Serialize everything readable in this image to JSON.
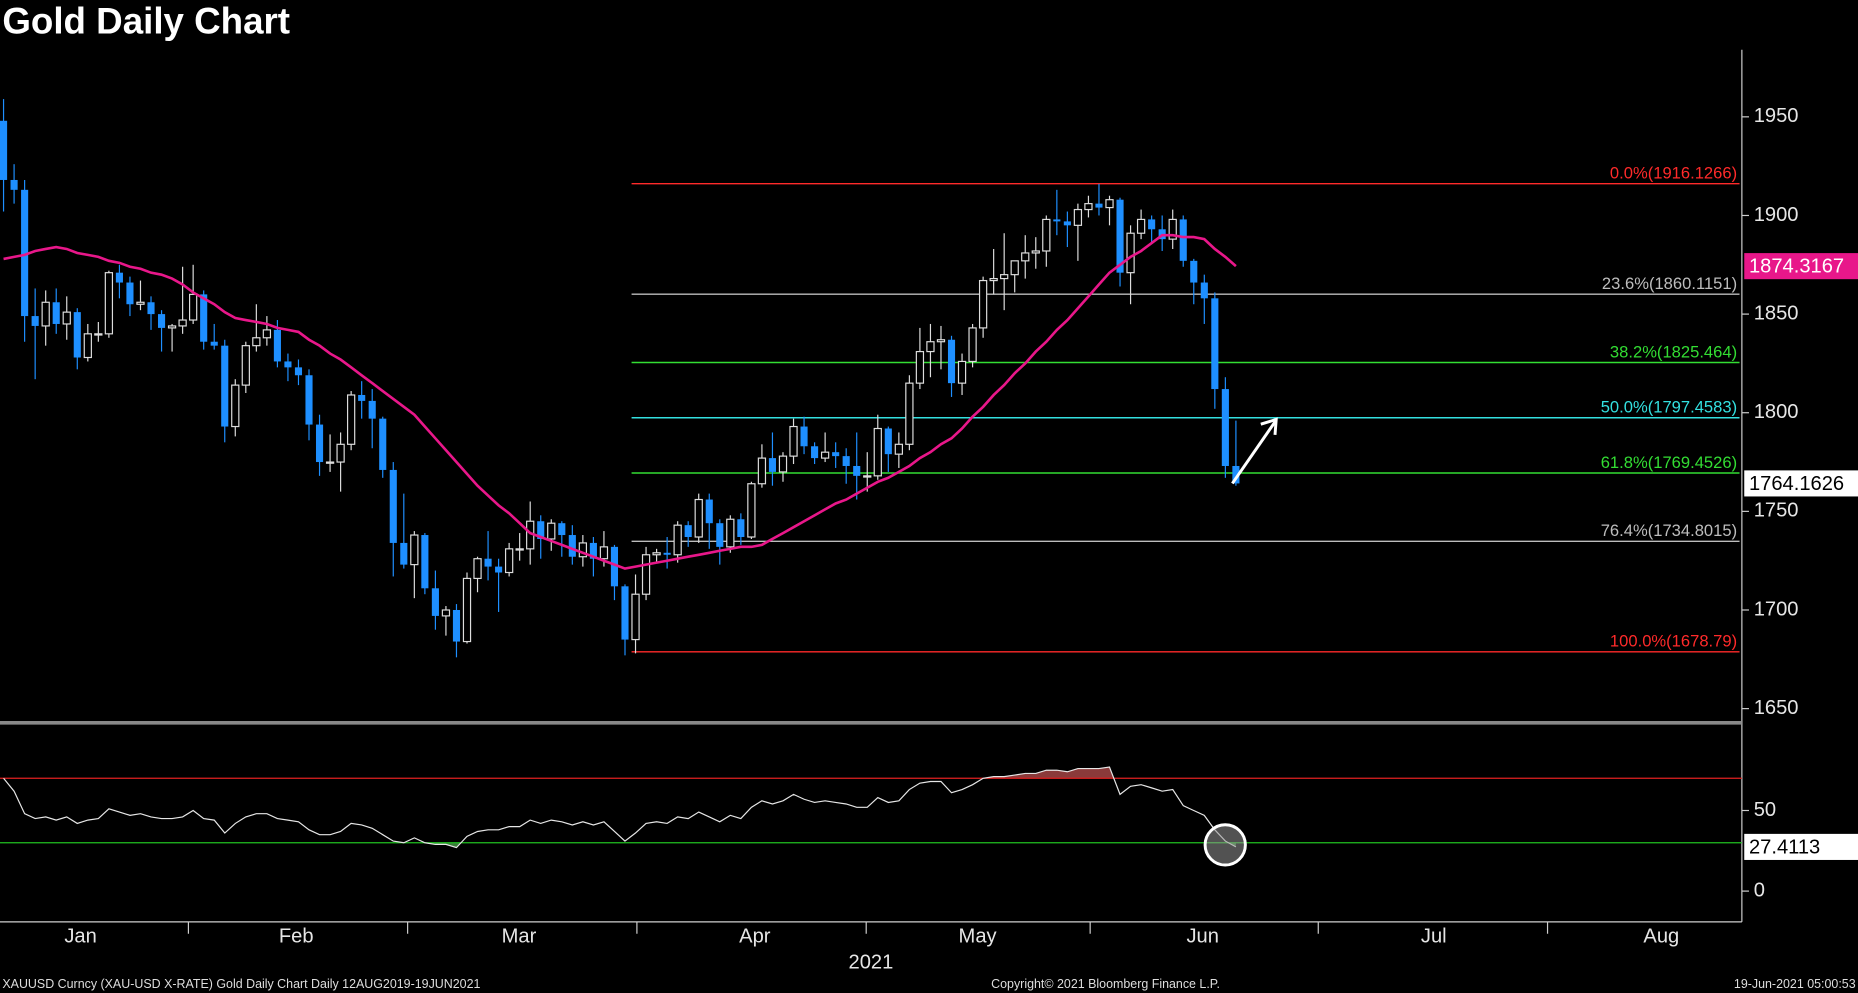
{
  "chart_data": {
    "type": "candlestick",
    "title": "Gold Daily Chart",
    "up_color": "#dddddd",
    "down_color": "#1e8fff",
    "ylim": [
      1644,
      1984
    ],
    "yticks": [
      1650,
      1700,
      1750,
      1800,
      1850,
      1900,
      1950
    ],
    "ohlc": [
      [
        1948,
        1959,
        1902,
        1918
      ],
      [
        1918,
        1926,
        1906,
        1913
      ],
      [
        1913,
        1918,
        1836,
        1849
      ],
      [
        1849,
        1863,
        1817,
        1844
      ],
      [
        1844,
        1862,
        1834,
        1856
      ],
      [
        1856,
        1863,
        1840,
        1845
      ],
      [
        1845,
        1859,
        1837,
        1851
      ],
      [
        1851,
        1853,
        1822,
        1828
      ],
      [
        1828,
        1845,
        1826,
        1840
      ],
      [
        1840,
        1846,
        1836,
        1840
      ],
      [
        1840,
        1872,
        1838,
        1871
      ],
      [
        1871,
        1875,
        1858,
        1866
      ],
      [
        1866,
        1869,
        1849,
        1855
      ],
      [
        1855,
        1867,
        1852,
        1856
      ],
      [
        1856,
        1859,
        1842,
        1850
      ],
      [
        1850,
        1852,
        1831,
        1843
      ],
      [
        1843,
        1845,
        1831,
        1844
      ],
      [
        1844,
        1874,
        1840,
        1847
      ],
      [
        1847,
        1875,
        1845,
        1860
      ],
      [
        1860,
        1862,
        1832,
        1836
      ],
      [
        1836,
        1845,
        1832,
        1834
      ],
      [
        1834,
        1837,
        1785,
        1793
      ],
      [
        1793,
        1817,
        1788,
        1814
      ],
      [
        1814,
        1836,
        1810,
        1834
      ],
      [
        1834,
        1855,
        1831,
        1838
      ],
      [
        1838,
        1849,
        1834,
        1842
      ],
      [
        1842,
        1847,
        1823,
        1826
      ],
      [
        1826,
        1830,
        1816,
        1823
      ],
      [
        1823,
        1827,
        1814,
        1819
      ],
      [
        1819,
        1822,
        1786,
        1794
      ],
      [
        1794,
        1799,
        1768,
        1775
      ],
      [
        1775,
        1789,
        1770,
        1775
      ],
      [
        1775,
        1790,
        1760,
        1784
      ],
      [
        1784,
        1811,
        1781,
        1809
      ],
      [
        1809,
        1816,
        1797,
        1806
      ],
      [
        1806,
        1812,
        1782,
        1797
      ],
      [
        1797,
        1798,
        1767,
        1771
      ],
      [
        1771,
        1775,
        1717,
        1734
      ],
      [
        1734,
        1759,
        1721,
        1723
      ],
      [
        1723,
        1740,
        1706,
        1738
      ],
      [
        1738,
        1739,
        1708,
        1711
      ],
      [
        1711,
        1720,
        1690,
        1697
      ],
      [
        1697,
        1702,
        1687,
        1700
      ],
      [
        1700,
        1703,
        1676,
        1684
      ],
      [
        1684,
        1719,
        1683,
        1716
      ],
      [
        1716,
        1727,
        1709,
        1726
      ],
      [
        1726,
        1740,
        1715,
        1722
      ],
      [
        1722,
        1726,
        1699,
        1719
      ],
      [
        1719,
        1734,
        1717,
        1731
      ],
      [
        1731,
        1739,
        1725,
        1731
      ],
      [
        1731,
        1755,
        1723,
        1745
      ],
      [
        1745,
        1748,
        1726,
        1736
      ],
      [
        1736,
        1746,
        1730,
        1744
      ],
      [
        1744,
        1745,
        1727,
        1738
      ],
      [
        1738,
        1743,
        1723,
        1727
      ],
      [
        1727,
        1738,
        1722,
        1734
      ],
      [
        1734,
        1737,
        1717,
        1726
      ],
      [
        1726,
        1740,
        1722,
        1732
      ],
      [
        1732,
        1733,
        1705,
        1712
      ],
      [
        1712,
        1713,
        1677,
        1685
      ],
      [
        1685,
        1718,
        1678,
        1708
      ],
      [
        1708,
        1732,
        1705,
        1728
      ],
      [
        1728,
        1731,
        1724,
        1729
      ],
      [
        1729,
        1737,
        1721,
        1728
      ],
      [
        1728,
        1745,
        1724,
        1743
      ],
      [
        1743,
        1745,
        1732,
        1737
      ],
      [
        1737,
        1759,
        1734,
        1756
      ],
      [
        1756,
        1759,
        1731,
        1744
      ],
      [
        1744,
        1746,
        1723,
        1732
      ],
      [
        1732,
        1748,
        1729,
        1746
      ],
      [
        1746,
        1749,
        1733,
        1737
      ],
      [
        1737,
        1765,
        1736,
        1764
      ],
      [
        1764,
        1784,
        1762,
        1777
      ],
      [
        1777,
        1790,
        1763,
        1770
      ],
      [
        1770,
        1780,
        1765,
        1778
      ],
      [
        1778,
        1797,
        1774,
        1793
      ],
      [
        1793,
        1798,
        1779,
        1783
      ],
      [
        1783,
        1785,
        1774,
        1777
      ],
      [
        1777,
        1790,
        1775,
        1780
      ],
      [
        1780,
        1785,
        1772,
        1778
      ],
      [
        1778,
        1782,
        1764,
        1773
      ],
      [
        1773,
        1790,
        1756,
        1768
      ],
      [
        1768,
        1780,
        1760,
        1768
      ],
      [
        1768,
        1799,
        1766,
        1792
      ],
      [
        1792,
        1793,
        1770,
        1779
      ],
      [
        1779,
        1790,
        1772,
        1784
      ],
      [
        1784,
        1819,
        1781,
        1815
      ],
      [
        1815,
        1843,
        1812,
        1831
      ],
      [
        1831,
        1845,
        1818,
        1836
      ],
      [
        1836,
        1844,
        1822,
        1837
      ],
      [
        1837,
        1839,
        1808,
        1815
      ],
      [
        1815,
        1830,
        1809,
        1826
      ],
      [
        1826,
        1845,
        1823,
        1843
      ],
      [
        1843,
        1869,
        1838,
        1867
      ],
      [
        1867,
        1883,
        1860,
        1868
      ],
      [
        1868,
        1891,
        1852,
        1870
      ],
      [
        1870,
        1877,
        1861,
        1877
      ],
      [
        1877,
        1890,
        1868,
        1881
      ],
      [
        1881,
        1889,
        1873,
        1882
      ],
      [
        1882,
        1900,
        1874,
        1898
      ],
      [
        1898,
        1913,
        1890,
        1897
      ],
      [
        1897,
        1902,
        1884,
        1895
      ],
      [
        1895,
        1906,
        1877,
        1903
      ],
      [
        1903,
        1910,
        1899,
        1906
      ],
      [
        1906,
        1916,
        1900,
        1904
      ],
      [
        1904,
        1910,
        1895,
        1908
      ],
      [
        1908,
        1909,
        1864,
        1871
      ],
      [
        1871,
        1895,
        1855,
        1891
      ],
      [
        1891,
        1903,
        1888,
        1898
      ],
      [
        1898,
        1900,
        1886,
        1893
      ],
      [
        1893,
        1900,
        1882,
        1888
      ],
      [
        1888,
        1903,
        1883,
        1898
      ],
      [
        1898,
        1900,
        1874,
        1877
      ],
      [
        1877,
        1878,
        1855,
        1866
      ],
      [
        1866,
        1870,
        1845,
        1858
      ],
      [
        1858,
        1861,
        1802,
        1812
      ],
      [
        1812,
        1818,
        1767,
        1773
      ],
      [
        1773,
        1796,
        1763,
        1764.1626
      ]
    ],
    "moving_average": {
      "color": "#e8178a",
      "values": [
        1878,
        1879,
        1880,
        1882,
        1883,
        1884,
        1883,
        1881,
        1880,
        1879,
        1877,
        1876,
        1874,
        1873,
        1871,
        1870,
        1868,
        1865,
        1861,
        1858,
        1855,
        1851,
        1848,
        1847,
        1846,
        1845,
        1843,
        1842,
        1841,
        1837,
        1834,
        1830,
        1827,
        1823,
        1819,
        1815,
        1811,
        1807,
        1803,
        1799,
        1793,
        1787,
        1781,
        1775,
        1769,
        1763,
        1758,
        1753,
        1749,
        1744,
        1739,
        1737,
        1735,
        1733,
        1731,
        1729,
        1727,
        1725,
        1723,
        1721,
        1722,
        1723,
        1724,
        1725,
        1726,
        1727,
        1728,
        1729,
        1730,
        1731,
        1732,
        1732,
        1733,
        1736,
        1739,
        1742,
        1745,
        1748,
        1751,
        1754,
        1756,
        1759,
        1762,
        1765,
        1767,
        1770,
        1773,
        1777,
        1780,
        1784,
        1787,
        1792,
        1798,
        1803,
        1809,
        1814,
        1820,
        1825,
        1831,
        1836,
        1842,
        1847,
        1853,
        1859,
        1865,
        1871,
        1875,
        1879,
        1882,
        1886,
        1890,
        1890,
        1889,
        1889,
        1888,
        1883,
        1879,
        1874.3167
      ]
    },
    "fib_levels": [
      {
        "label": "0.0%(1916.1266)",
        "value": 1916.1266,
        "color": "#ff2a2a"
      },
      {
        "label": "23.6%(1860.1151)",
        "value": 1860.1151,
        "color": "#bdbdbd"
      },
      {
        "label": "38.2%(1825.464)",
        "value": 1825.464,
        "color": "#33dd33"
      },
      {
        "label": "50.0%(1797.4583)",
        "value": 1797.4583,
        "color": "#33e0e0"
      },
      {
        "label": "61.8%(1769.4526)",
        "value": 1769.4526,
        "color": "#33dd33"
      },
      {
        "label": "76.4%(1734.8015)",
        "value": 1734.8015,
        "color": "#bdbdbd"
      },
      {
        "label": "100.0%(1678.79)",
        "value": 1678.79,
        "color": "#ff2a2a"
      }
    ],
    "months": [
      "Jan",
      "Feb",
      "Mar",
      "Apr",
      "May",
      "Jun",
      "Jul",
      "Aug"
    ],
    "year": "2021",
    "rsi": {
      "color": "#e6e6e6",
      "ylim": [
        -19.1,
        98.5
      ],
      "yticks": [
        0,
        50
      ],
      "levels": [
        {
          "value": 70,
          "color": "#e02020"
        },
        {
          "value": 30,
          "color": "#20c020"
        }
      ],
      "values": [
        70,
        62,
        48,
        45,
        46,
        44,
        46,
        42,
        44,
        45,
        51,
        49,
        47,
        48,
        46,
        45,
        45,
        46,
        50,
        45,
        44,
        36,
        42,
        46,
        48,
        48,
        45,
        44,
        43,
        38,
        35,
        35,
        37,
        42,
        41,
        39,
        35,
        31,
        30,
        33,
        30,
        29,
        29,
        27,
        34,
        37,
        38,
        38,
        40,
        40,
        44,
        42,
        44,
        43,
        41,
        43,
        41,
        43,
        37,
        31,
        36,
        42,
        43,
        42,
        46,
        45,
        49,
        46,
        43,
        47,
        45,
        52,
        56,
        54,
        56,
        60,
        57,
        55,
        56,
        55,
        54,
        52,
        52,
        58,
        55,
        56,
        63,
        67,
        68,
        68,
        61,
        63,
        66,
        70,
        71,
        71,
        72,
        73,
        73,
        75,
        75,
        74,
        76,
        76,
        76,
        77,
        60,
        65,
        66,
        64,
        62,
        63,
        53,
        50,
        47,
        38,
        31,
        27.4113
      ]
    },
    "footer": {
      "source": "XAUUSD Curncy (XAU-USD X-RATE) Gold Daily Chart  Daily 12AUG2019-19JUN2021",
      "copyright": "Copyright© 2021 Bloomberg Finance L.P.",
      "timestamp": "19-Jun-2021 05:00:53"
    }
  }
}
